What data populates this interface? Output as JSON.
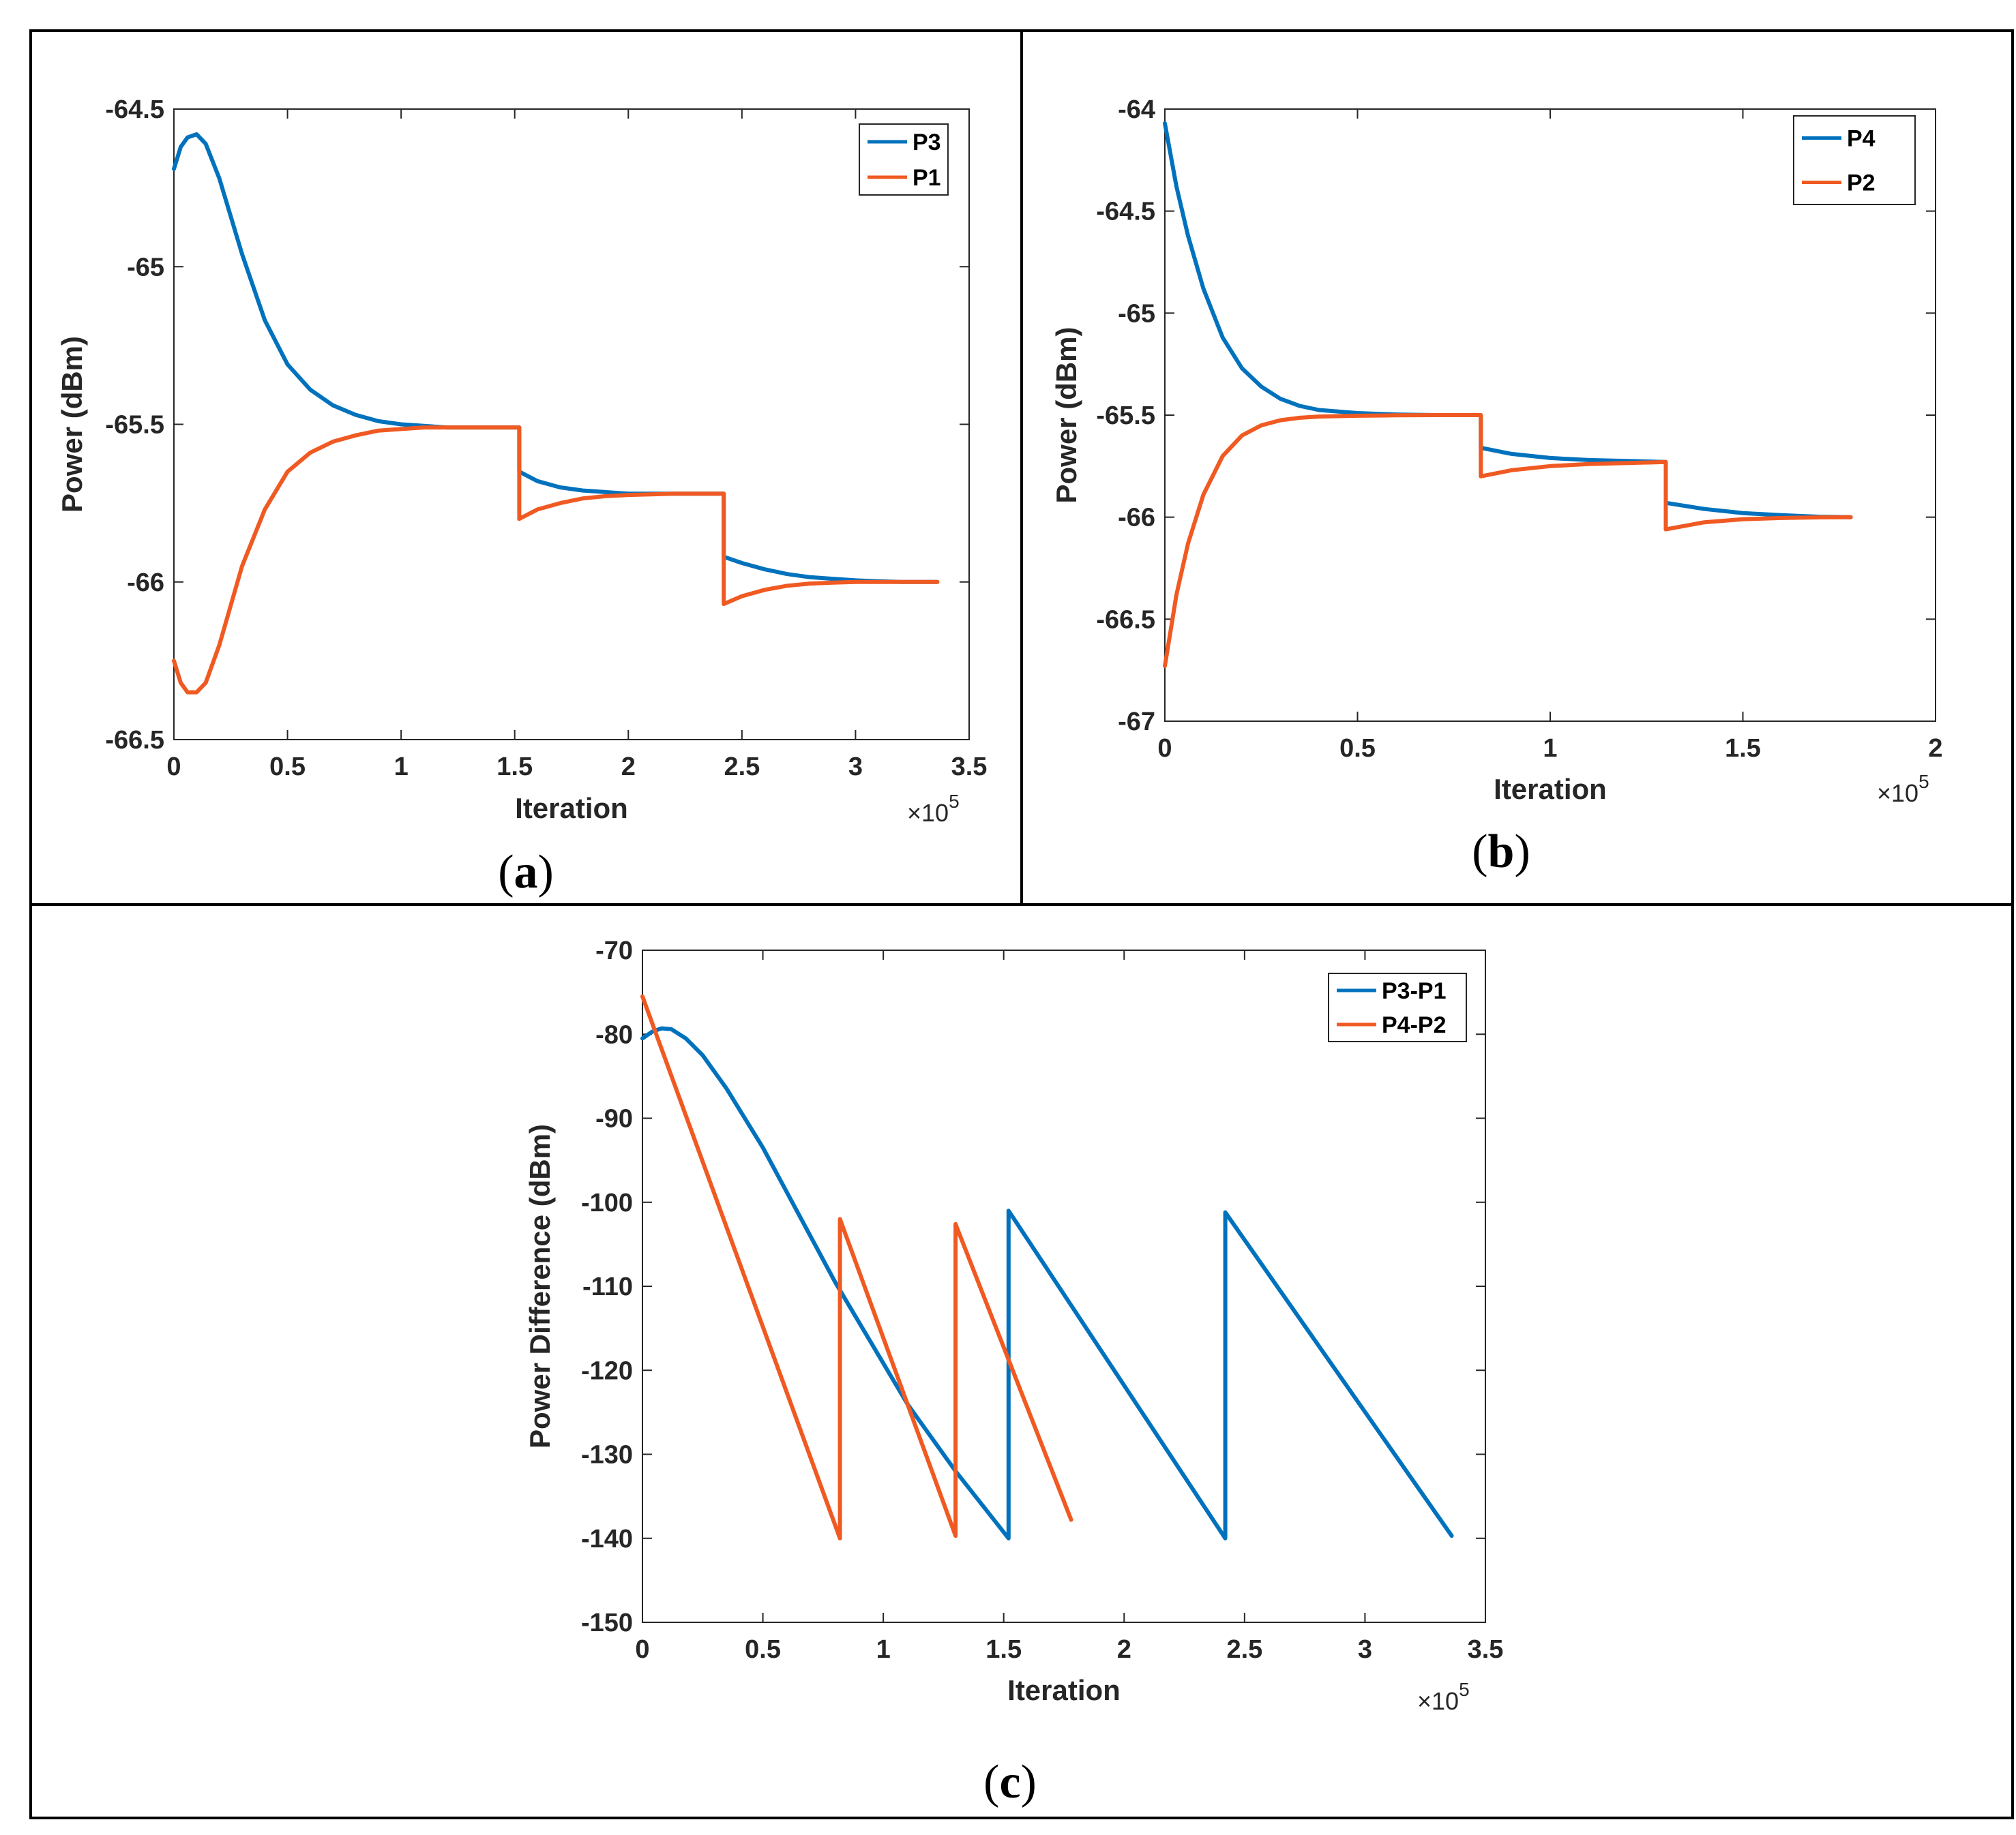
{
  "colors": {
    "blue": "#0072BD",
    "orange": "#F05A22",
    "axis": "#262626",
    "frame": "#000000"
  },
  "chart_data": [
    {
      "id": "a",
      "type": "line",
      "panel_label": "a",
      "xlabel": "Iteration",
      "ylabel": "Power (dBm)",
      "x_exponent_base": "10",
      "x_exponent_power": "5",
      "x_scale": 100000,
      "xlim": [
        0,
        3.5
      ],
      "ylim": [
        -66.5,
        -64.5
      ],
      "xticks": [
        0,
        0.5,
        1,
        1.5,
        2,
        2.5,
        3,
        3.5
      ],
      "yticks": [
        -64.5,
        -65,
        -65.5,
        -66,
        -66.5
      ],
      "xtick_labels": [
        "0",
        "0.5",
        "1",
        "1.5",
        "2",
        "2.5",
        "3",
        "3.5"
      ],
      "ytick_labels": [
        "-64.5",
        "-65",
        "-65.5",
        "-66",
        "-66.5"
      ],
      "legend": "top-right",
      "series": [
        {
          "name": "P3",
          "color": "blue",
          "x": [
            0,
            0.03,
            0.06,
            0.1,
            0.14,
            0.2,
            0.3,
            0.4,
            0.5,
            0.6,
            0.7,
            0.8,
            0.9,
            1.0,
            1.1,
            1.2,
            1.3,
            1.4,
            1.52,
            1.52,
            1.6,
            1.7,
            1.8,
            1.9,
            2.0,
            2.1,
            2.2,
            2.3,
            2.42,
            2.42,
            2.5,
            2.6,
            2.7,
            2.8,
            2.9,
            3.0,
            3.1,
            3.2,
            3.36
          ],
          "y": [
            -64.69,
            -64.62,
            -64.59,
            -64.58,
            -64.61,
            -64.72,
            -64.96,
            -65.17,
            -65.31,
            -65.39,
            -65.44,
            -65.47,
            -65.49,
            -65.5,
            -65.505,
            -65.51,
            -65.51,
            -65.51,
            -65.51,
            -65.65,
            -65.68,
            -65.7,
            -65.71,
            -65.715,
            -65.72,
            -65.72,
            -65.72,
            -65.72,
            -65.72,
            -65.92,
            -65.94,
            -65.96,
            -65.975,
            -65.985,
            -65.99,
            -65.995,
            -65.998,
            -66.0,
            -66.0
          ]
        },
        {
          "name": "P1",
          "color": "orange",
          "x": [
            0,
            0.03,
            0.06,
            0.1,
            0.14,
            0.2,
            0.3,
            0.4,
            0.5,
            0.6,
            0.7,
            0.8,
            0.9,
            1.0,
            1.1,
            1.2,
            1.3,
            1.4,
            1.52,
            1.52,
            1.6,
            1.7,
            1.8,
            1.9,
            2.0,
            2.1,
            2.2,
            2.3,
            2.42,
            2.42,
            2.5,
            2.6,
            2.7,
            2.8,
            2.9,
            3.0,
            3.1,
            3.2,
            3.36
          ],
          "y": [
            -66.25,
            -66.32,
            -66.35,
            -66.35,
            -66.32,
            -66.2,
            -65.95,
            -65.77,
            -65.65,
            -65.59,
            -65.555,
            -65.535,
            -65.52,
            -65.515,
            -65.51,
            -65.51,
            -65.51,
            -65.51,
            -65.51,
            -65.8,
            -65.77,
            -65.75,
            -65.735,
            -65.728,
            -65.724,
            -65.722,
            -65.72,
            -65.72,
            -65.72,
            -66.07,
            -66.045,
            -66.025,
            -66.012,
            -66.005,
            -66.002,
            -66.0,
            -66.0,
            -66.0,
            -66.0
          ]
        }
      ],
      "legend_entries": [
        "P3",
        "P1"
      ]
    },
    {
      "id": "b",
      "type": "line",
      "panel_label": "b",
      "xlabel": "Iteration",
      "ylabel": "Power (dBm)",
      "x_exponent_base": "10",
      "x_exponent_power": "5",
      "x_scale": 100000,
      "xlim": [
        0,
        2
      ],
      "ylim": [
        -67,
        -64
      ],
      "xticks": [
        0,
        0.5,
        1,
        1.5,
        2
      ],
      "yticks": [
        -64,
        -64.5,
        -65,
        -65.5,
        -66,
        -66.5,
        -67
      ],
      "xtick_labels": [
        "0",
        "0.5",
        "1",
        "1.5",
        "2"
      ],
      "ytick_labels": [
        "-64",
        "-64.5",
        "-65",
        "-65.5",
        "-66",
        "-66.5",
        "-67"
      ],
      "legend": "top-right",
      "series": [
        {
          "name": "P4",
          "color": "blue",
          "x": [
            0,
            0.03,
            0.06,
            0.1,
            0.15,
            0.2,
            0.25,
            0.3,
            0.35,
            0.4,
            0.5,
            0.6,
            0.7,
            0.82,
            0.82,
            0.9,
            1.0,
            1.1,
            1.2,
            1.3,
            1.3,
            1.4,
            1.5,
            1.6,
            1.7,
            1.78
          ],
          "y": [
            -64.07,
            -64.38,
            -64.62,
            -64.88,
            -65.12,
            -65.27,
            -65.36,
            -65.42,
            -65.455,
            -65.475,
            -65.49,
            -65.497,
            -65.5,
            -65.5,
            -65.66,
            -65.69,
            -65.71,
            -65.72,
            -65.725,
            -65.73,
            -65.93,
            -65.96,
            -65.98,
            -65.99,
            -65.998,
            -66.0
          ]
        },
        {
          "name": "P2",
          "color": "orange",
          "x": [
            0,
            0.03,
            0.06,
            0.1,
            0.15,
            0.2,
            0.25,
            0.3,
            0.35,
            0.4,
            0.5,
            0.6,
            0.7,
            0.82,
            0.82,
            0.9,
            1.0,
            1.1,
            1.2,
            1.3,
            1.3,
            1.4,
            1.5,
            1.6,
            1.7,
            1.78
          ],
          "y": [
            -66.73,
            -66.38,
            -66.13,
            -65.89,
            -65.7,
            -65.6,
            -65.55,
            -65.525,
            -65.513,
            -65.507,
            -65.503,
            -65.501,
            -65.5,
            -65.5,
            -65.8,
            -65.77,
            -65.75,
            -65.74,
            -65.735,
            -65.73,
            -66.06,
            -66.025,
            -66.01,
            -66.004,
            -66.001,
            -66.0
          ]
        }
      ],
      "legend_entries": [
        "P4",
        "P2"
      ]
    },
    {
      "id": "c",
      "type": "line",
      "panel_label": "c",
      "xlabel": "Iteration",
      "ylabel": "Power Difference (dBm)",
      "x_exponent_base": "10",
      "x_exponent_power": "5",
      "x_scale": 100000,
      "xlim": [
        0,
        3.5
      ],
      "ylim": [
        -150,
        -70
      ],
      "xticks": [
        0,
        0.5,
        1,
        1.5,
        2,
        2.5,
        3,
        3.5
      ],
      "yticks": [
        -70,
        -80,
        -90,
        -100,
        -110,
        -120,
        -130,
        -140,
        -150
      ],
      "xtick_labels": [
        "0",
        "0.5",
        "1",
        "1.5",
        "2",
        "2.5",
        "3",
        "3.5"
      ],
      "ytick_labels": [
        "-70",
        "-80",
        "-90",
        "-100",
        "-110",
        "-120",
        "-130",
        "-140",
        "-150"
      ],
      "legend": "top-right",
      "series": [
        {
          "name": "P3-P1",
          "color": "blue",
          "x": [
            0,
            0.04,
            0.08,
            0.12,
            0.18,
            0.25,
            0.35,
            0.5,
            0.8,
            1.1,
            1.3,
            1.52,
            1.52,
            2.42,
            2.42,
            3.36
          ],
          "y": [
            -80.5,
            -79.7,
            -79.3,
            -79.4,
            -80.5,
            -82.5,
            -86.5,
            -93.5,
            -109.5,
            -124,
            -132,
            -140,
            -101,
            -140,
            -101.2,
            -139.7
          ]
        },
        {
          "name": "P4-P2",
          "color": "orange",
          "x": [
            0,
            0.82,
            0.82,
            1.3,
            1.3,
            1.78
          ],
          "y": [
            -75.5,
            -140,
            -102,
            -139.7,
            -102.6,
            -137.8
          ]
        }
      ],
      "legend_entries": [
        "P3-P1",
        "P4-P2"
      ]
    }
  ]
}
